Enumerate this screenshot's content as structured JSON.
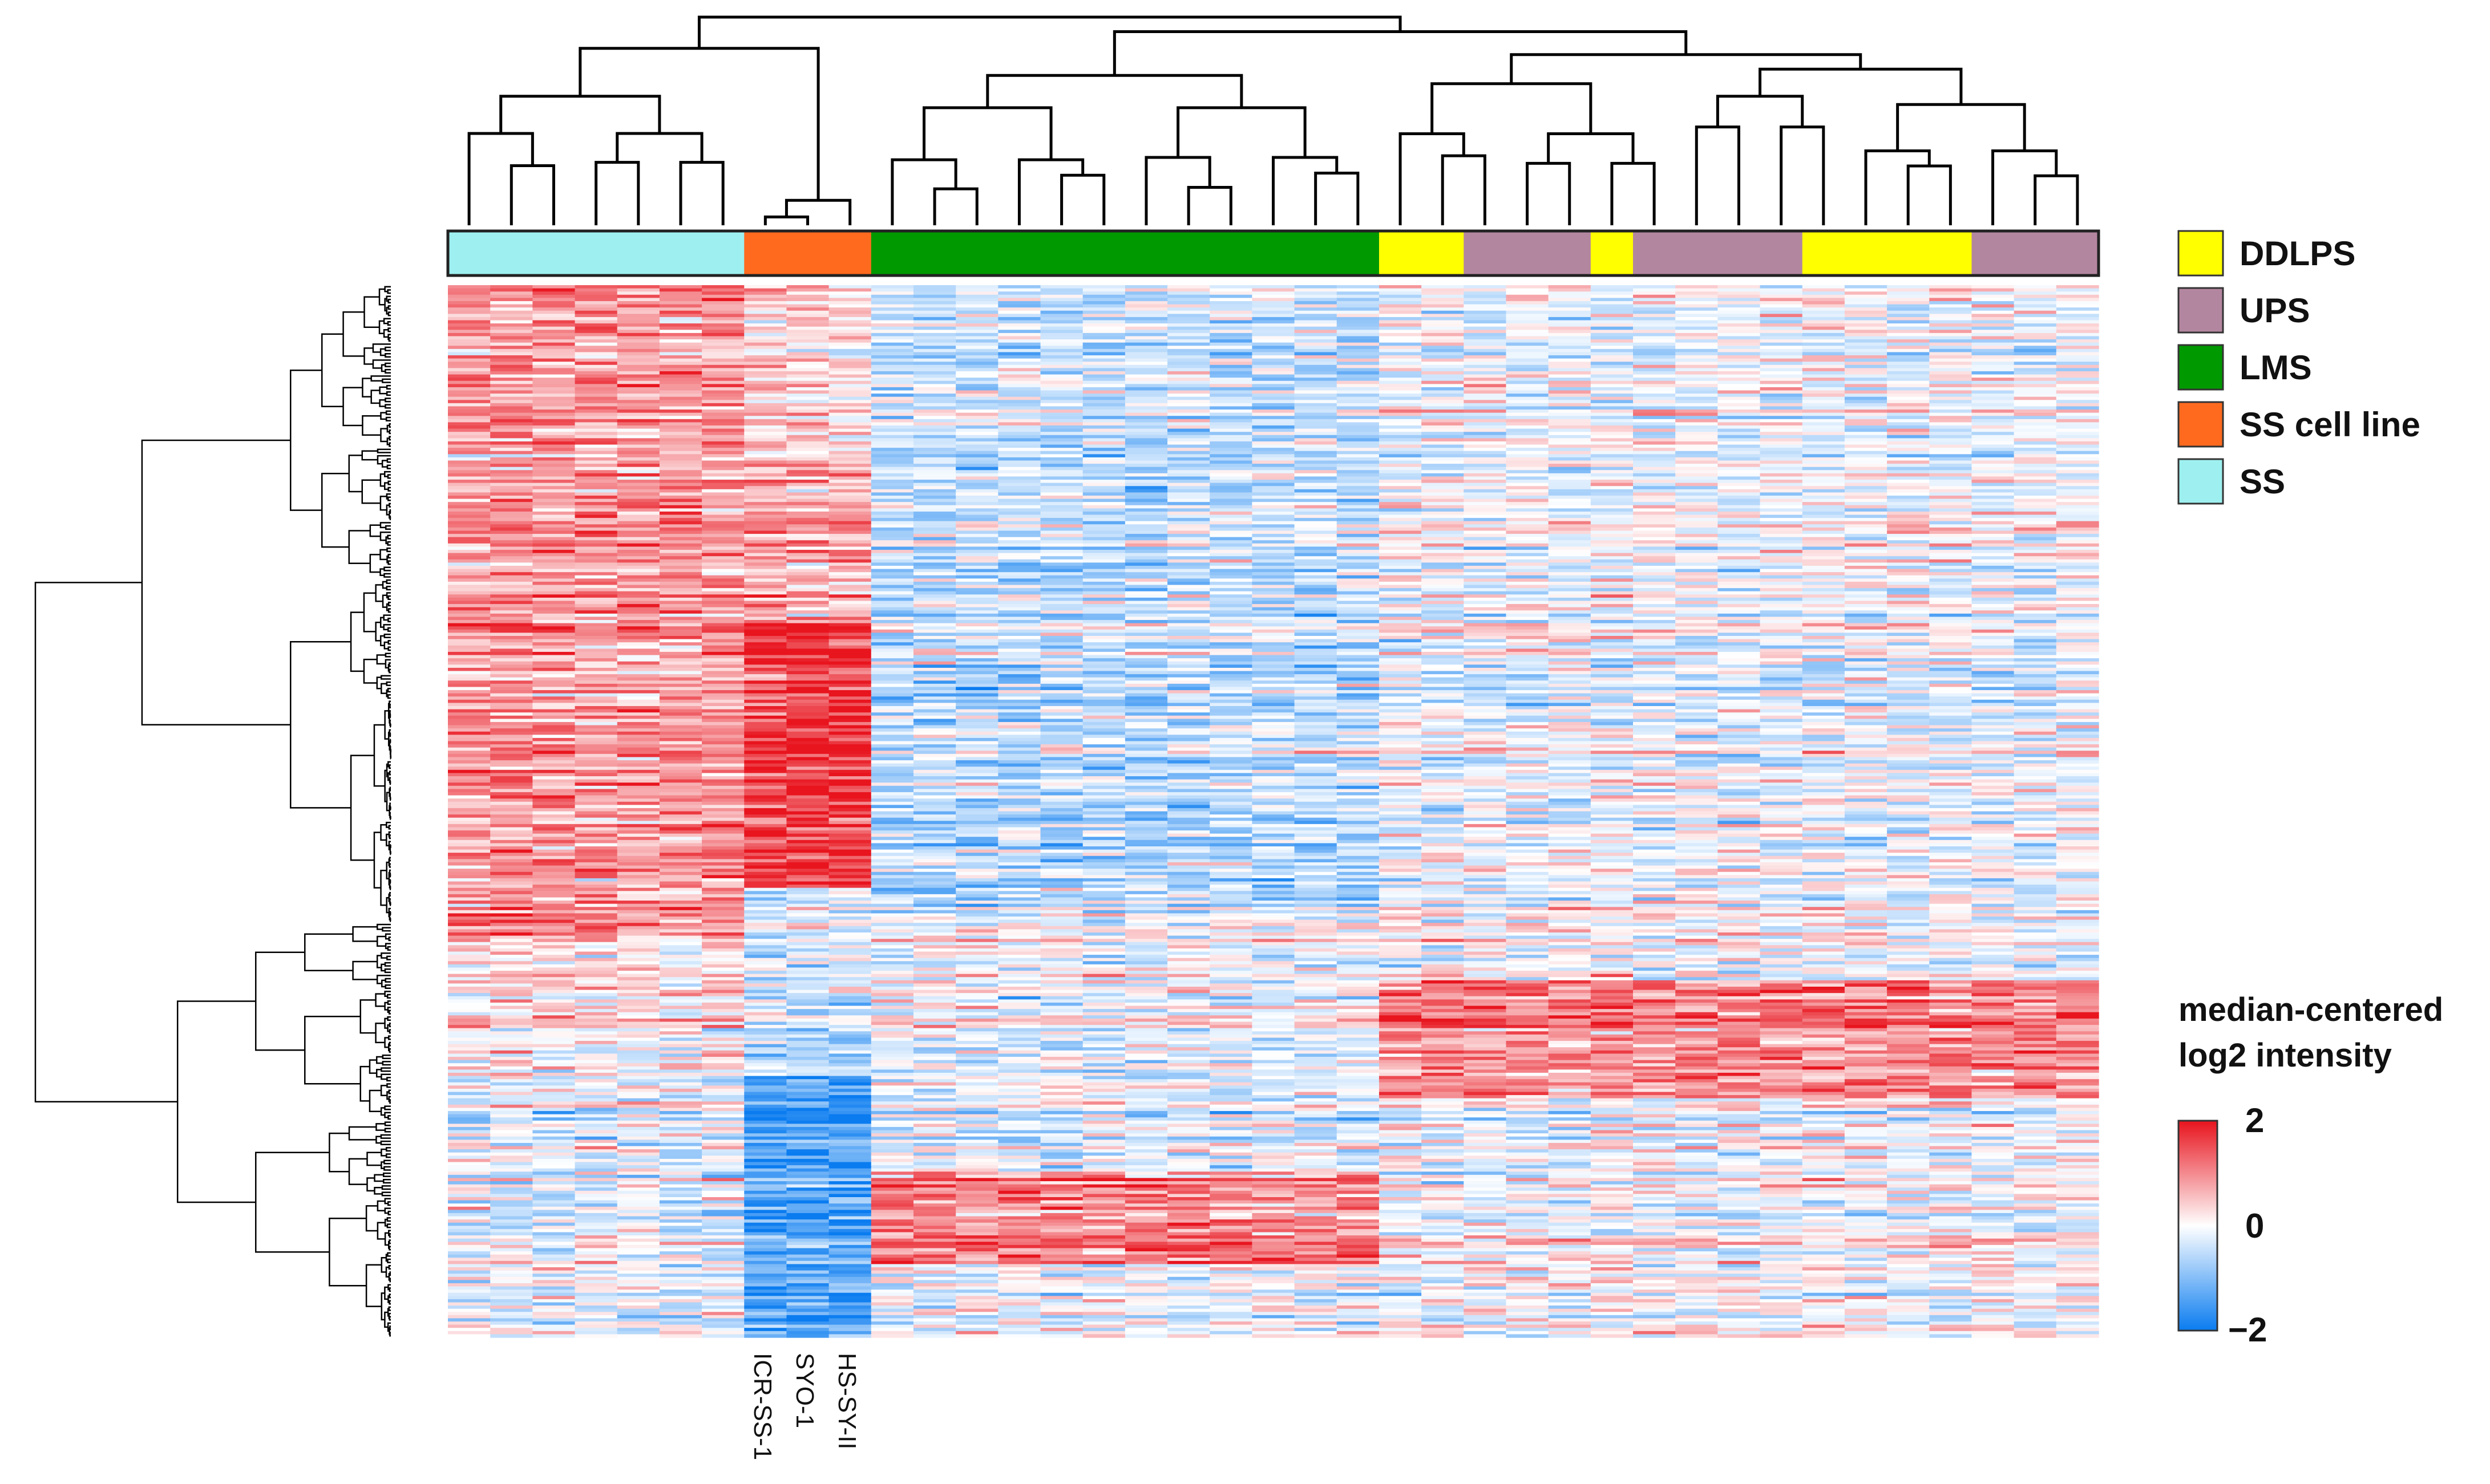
{
  "chart_data": {
    "type": "heatmap",
    "title": "",
    "description_of_values": "median-centered log2 intensity",
    "n_samples": 39,
    "n_genes_rows": 330,
    "sample_groups_in_column_order": [
      {
        "group": "SS",
        "count": 7
      },
      {
        "group": "SS cell line",
        "count": 3
      },
      {
        "group": "LMS",
        "count": 12
      },
      {
        "group": "DDLPS",
        "count": 2
      },
      {
        "group": "UPS",
        "count": 3
      },
      {
        "group": "DDLPS",
        "count": 1
      },
      {
        "group": "UPS",
        "count": 4
      },
      {
        "group": "DDLPS",
        "count": 4
      },
      {
        "group": "UPS",
        "count": 3
      }
    ],
    "legend": [
      {
        "label": "DDLPS",
        "color": "#ffff00"
      },
      {
        "label": "UPS",
        "color": "#b3869f"
      },
      {
        "label": "LMS",
        "color": "#009900"
      },
      {
        "label": "SS cell line",
        "color": "#ff6a1f"
      },
      {
        "label": "SS",
        "color": "#9ef0f0"
      }
    ],
    "color_scale": {
      "title_line1": "median-centered",
      "title_line2": "log2 intensity",
      "min": -2,
      "mid": 0,
      "max": 2,
      "tick_labels": [
        "2",
        "0",
        "−2"
      ],
      "low_color": "#0a7cf0",
      "mid_color": "#ffffff",
      "high_color": "#e8141e"
    },
    "cell_line_labels": [
      "ICR-SS-1",
      "SYO-1",
      "HS-SY-II"
    ]
  }
}
